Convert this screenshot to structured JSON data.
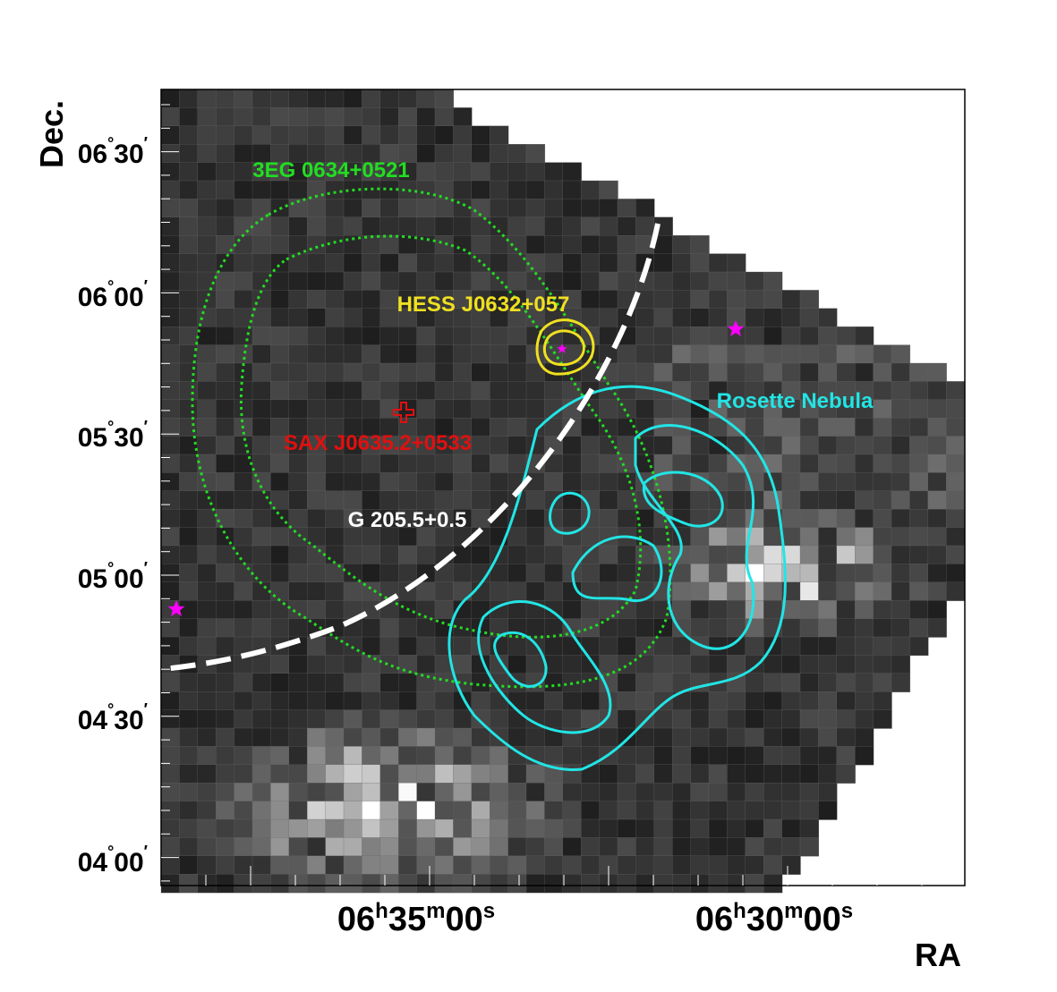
{
  "axes": {
    "y_label": "Dec.",
    "x_label": "RA",
    "y_ticks": [
      [
        "06",
        "°",
        "30",
        "′"
      ],
      [
        "06",
        "°",
        "00",
        "′"
      ],
      [
        "05",
        "°",
        "30",
        "′"
      ],
      [
        "05",
        "°",
        "00",
        "′"
      ],
      [
        "04",
        "°",
        "30",
        "′"
      ],
      [
        "04",
        "°",
        "00",
        "′"
      ]
    ],
    "x_ticks": [
      [
        "06",
        "h",
        "35",
        "m",
        "00",
        "s"
      ],
      [
        "06",
        "h",
        "30",
        "m",
        "00",
        "s"
      ]
    ]
  },
  "annotations": {
    "egret": "3EG 0634+0521",
    "hess": "HESS J0632+057",
    "rosette": "Rosette Nebula",
    "sax": "SAX J0635.2+0533",
    "snr": "G 205.5+0.5"
  }
}
